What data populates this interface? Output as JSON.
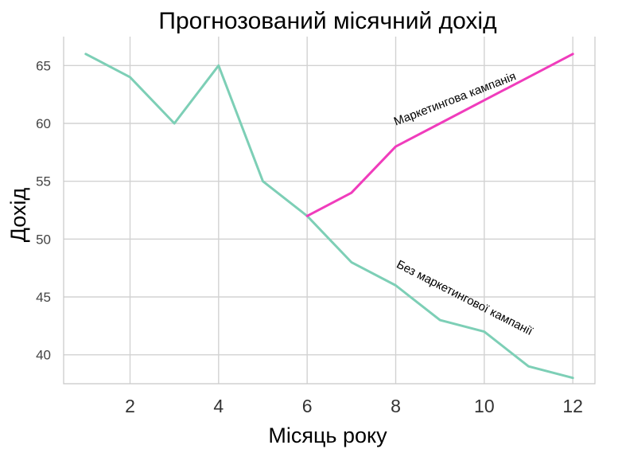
{
  "chart_data": {
    "type": "line",
    "title": "Прогнозований місячний дохід",
    "xlabel": "Місяць року",
    "ylabel": "Дохід",
    "xlim": [
      0.5,
      12.5
    ],
    "ylim": [
      37.5,
      67.5
    ],
    "xticks": [
      2,
      4,
      6,
      8,
      10,
      12
    ],
    "yticks": [
      40,
      45,
      50,
      55,
      60,
      65
    ],
    "grid": true,
    "series": [
      {
        "key": "baseline",
        "color": "#7dcfb6",
        "x": [
          1,
          2,
          3,
          4,
          5,
          6,
          7,
          8,
          9,
          10,
          11,
          12
        ],
        "y": [
          66,
          64,
          60,
          65,
          55,
          52,
          48,
          46,
          43,
          42,
          39,
          38
        ]
      },
      {
        "key": "campaign",
        "color": "#f03cbc",
        "x": [
          6,
          7,
          8,
          9,
          10,
          11,
          12
        ],
        "y": [
          52,
          54,
          58,
          60,
          62,
          64,
          66
        ]
      }
    ],
    "annotations": [
      {
        "text": "Маркетингова кампанія",
        "x": 8,
        "y": 59.8,
        "angle": -21
      },
      {
        "text": "Без маркетингової кампанії",
        "x": 8,
        "y": 47.6,
        "angle": 27
      }
    ]
  }
}
